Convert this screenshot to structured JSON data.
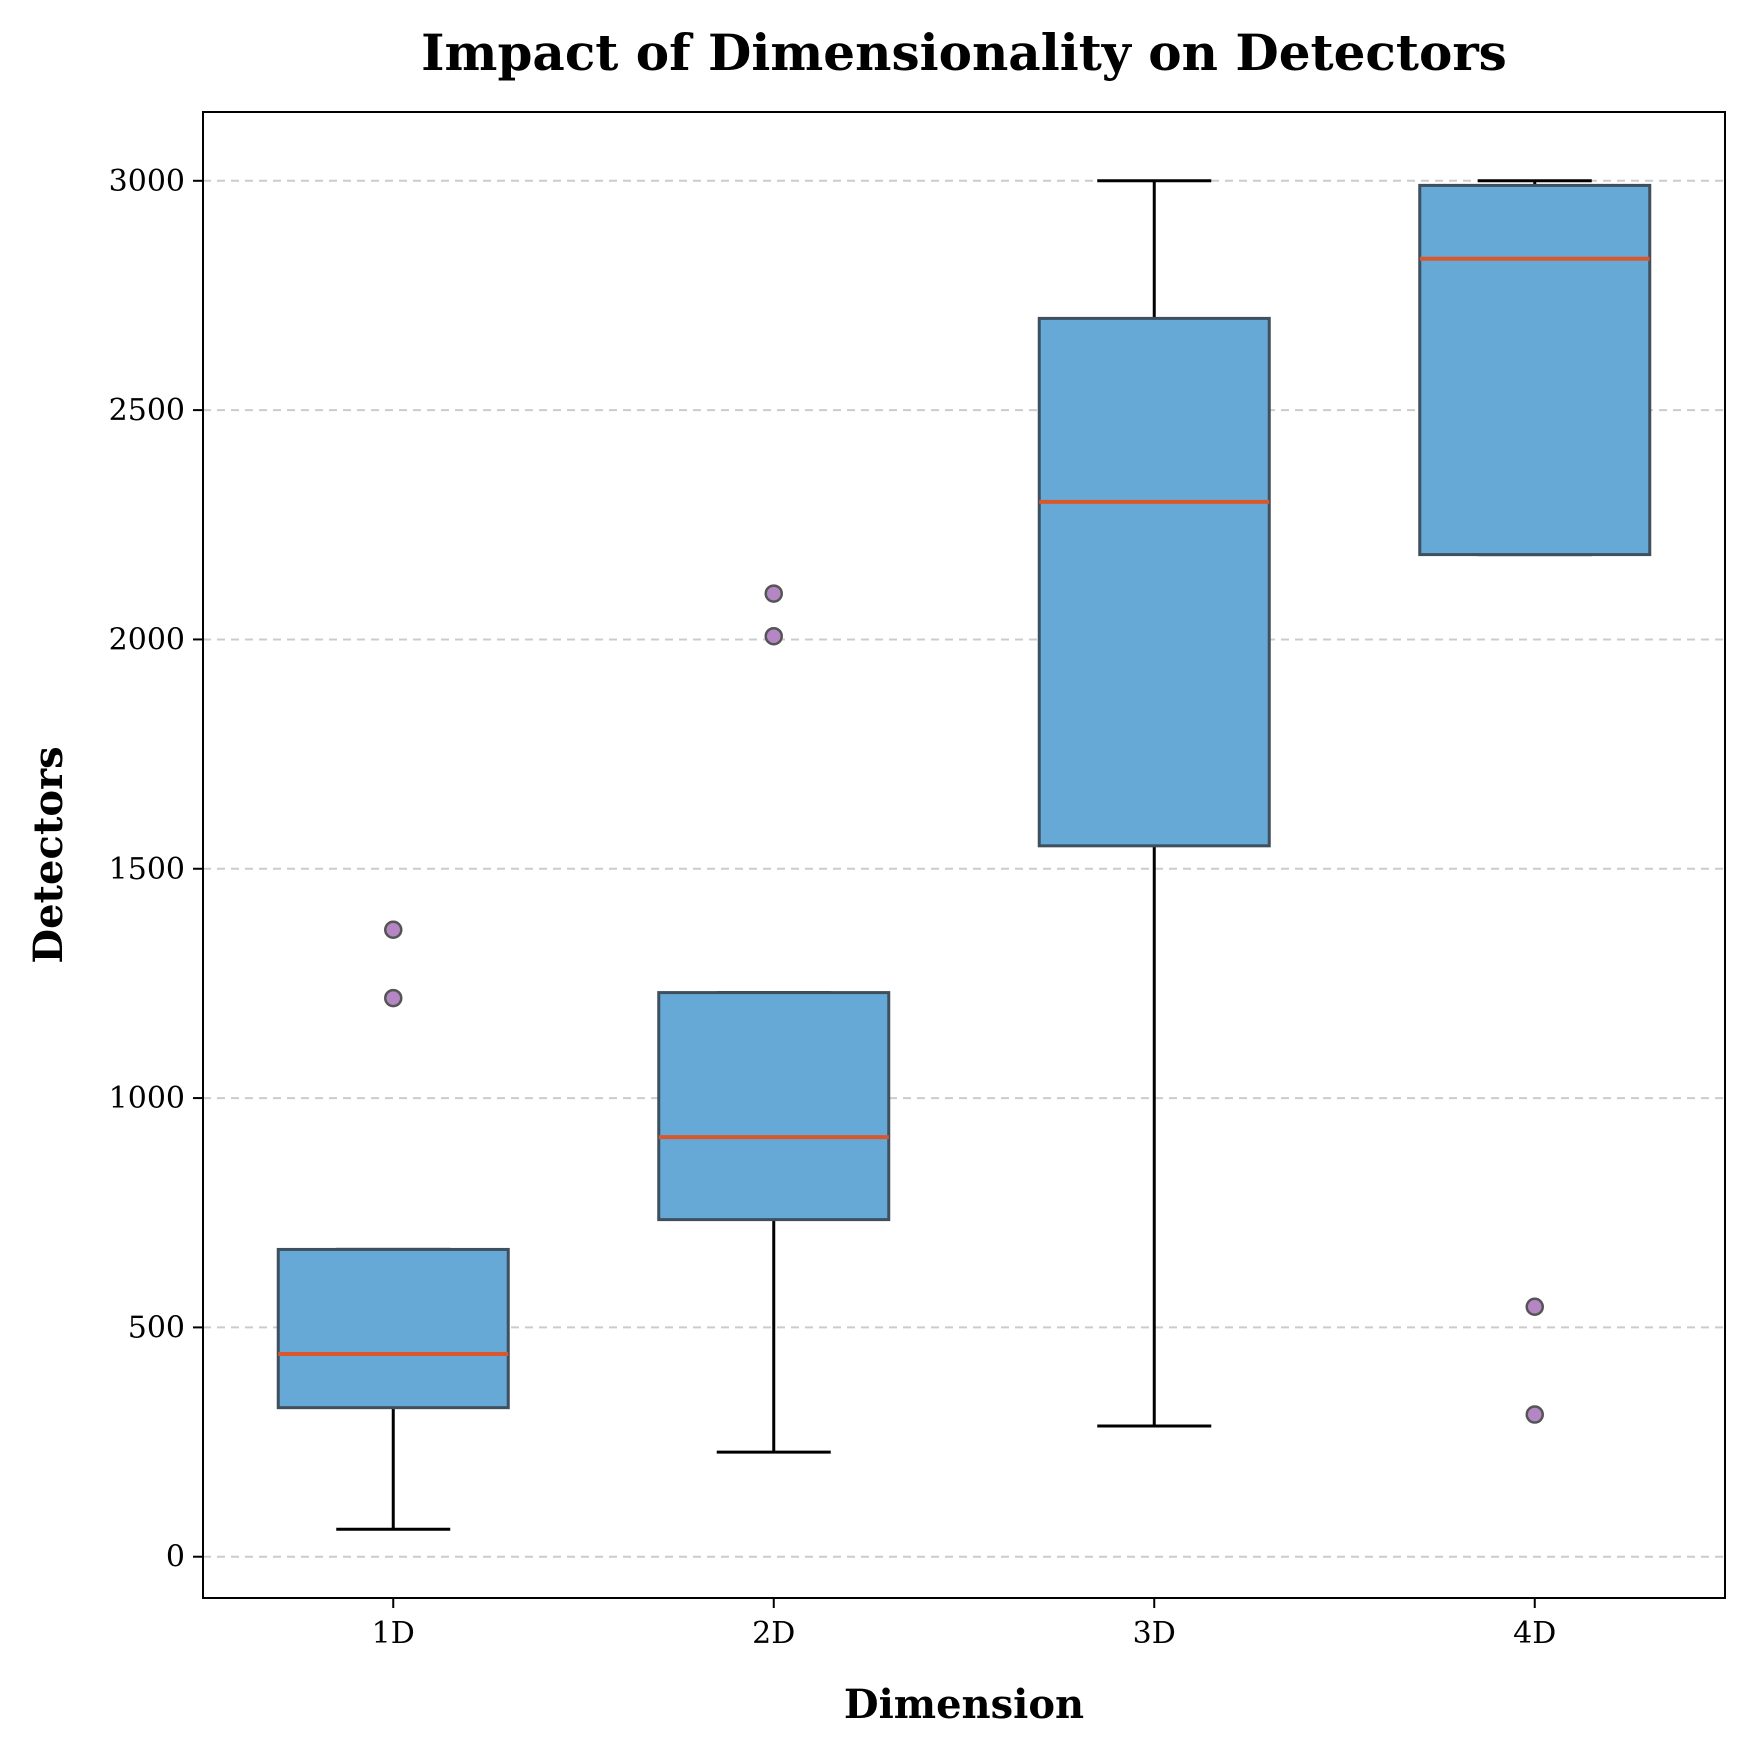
{
  "chart_data": {
    "type": "box",
    "title": "Impact of Dimensionality on Detectors",
    "xlabel": "Dimension",
    "ylabel": "Detectors",
    "ylim": [
      -90,
      3150
    ],
    "yticks": [
      0,
      500,
      1000,
      1500,
      2000,
      2500,
      3000
    ],
    "grid": "y-dashed",
    "categories": [
      "1D",
      "2D",
      "3D",
      "4D"
    ],
    "boxes": [
      {
        "category": "1D",
        "whisker_low": 60,
        "q1": 325,
        "median": 442,
        "q3": 670,
        "whisker_high": 670,
        "outliers": [
          1218,
          1367
        ]
      },
      {
        "category": "2D",
        "whisker_low": 228,
        "q1": 735,
        "median": 915,
        "q3": 1230,
        "whisker_high": 1230,
        "outliers": [
          2007,
          2100
        ]
      },
      {
        "category": "3D",
        "whisker_low": 285,
        "q1": 1550,
        "median": 2300,
        "q3": 2700,
        "whisker_high": 3000,
        "outliers": []
      },
      {
        "category": "4D",
        "whisker_low": 2185,
        "q1": 2185,
        "median": 2830,
        "q3": 2990,
        "whisker_high": 3000,
        "outliers": [
          310,
          545
        ]
      }
    ],
    "colors": {
      "box_fill": "#66a9d6",
      "box_edge": "#3e4f5e",
      "median": "#d9572b",
      "whisker": "#000000",
      "outlier_fill": "#b486c4",
      "outlier_edge": "#555555",
      "grid": "#cccccc"
    }
  }
}
